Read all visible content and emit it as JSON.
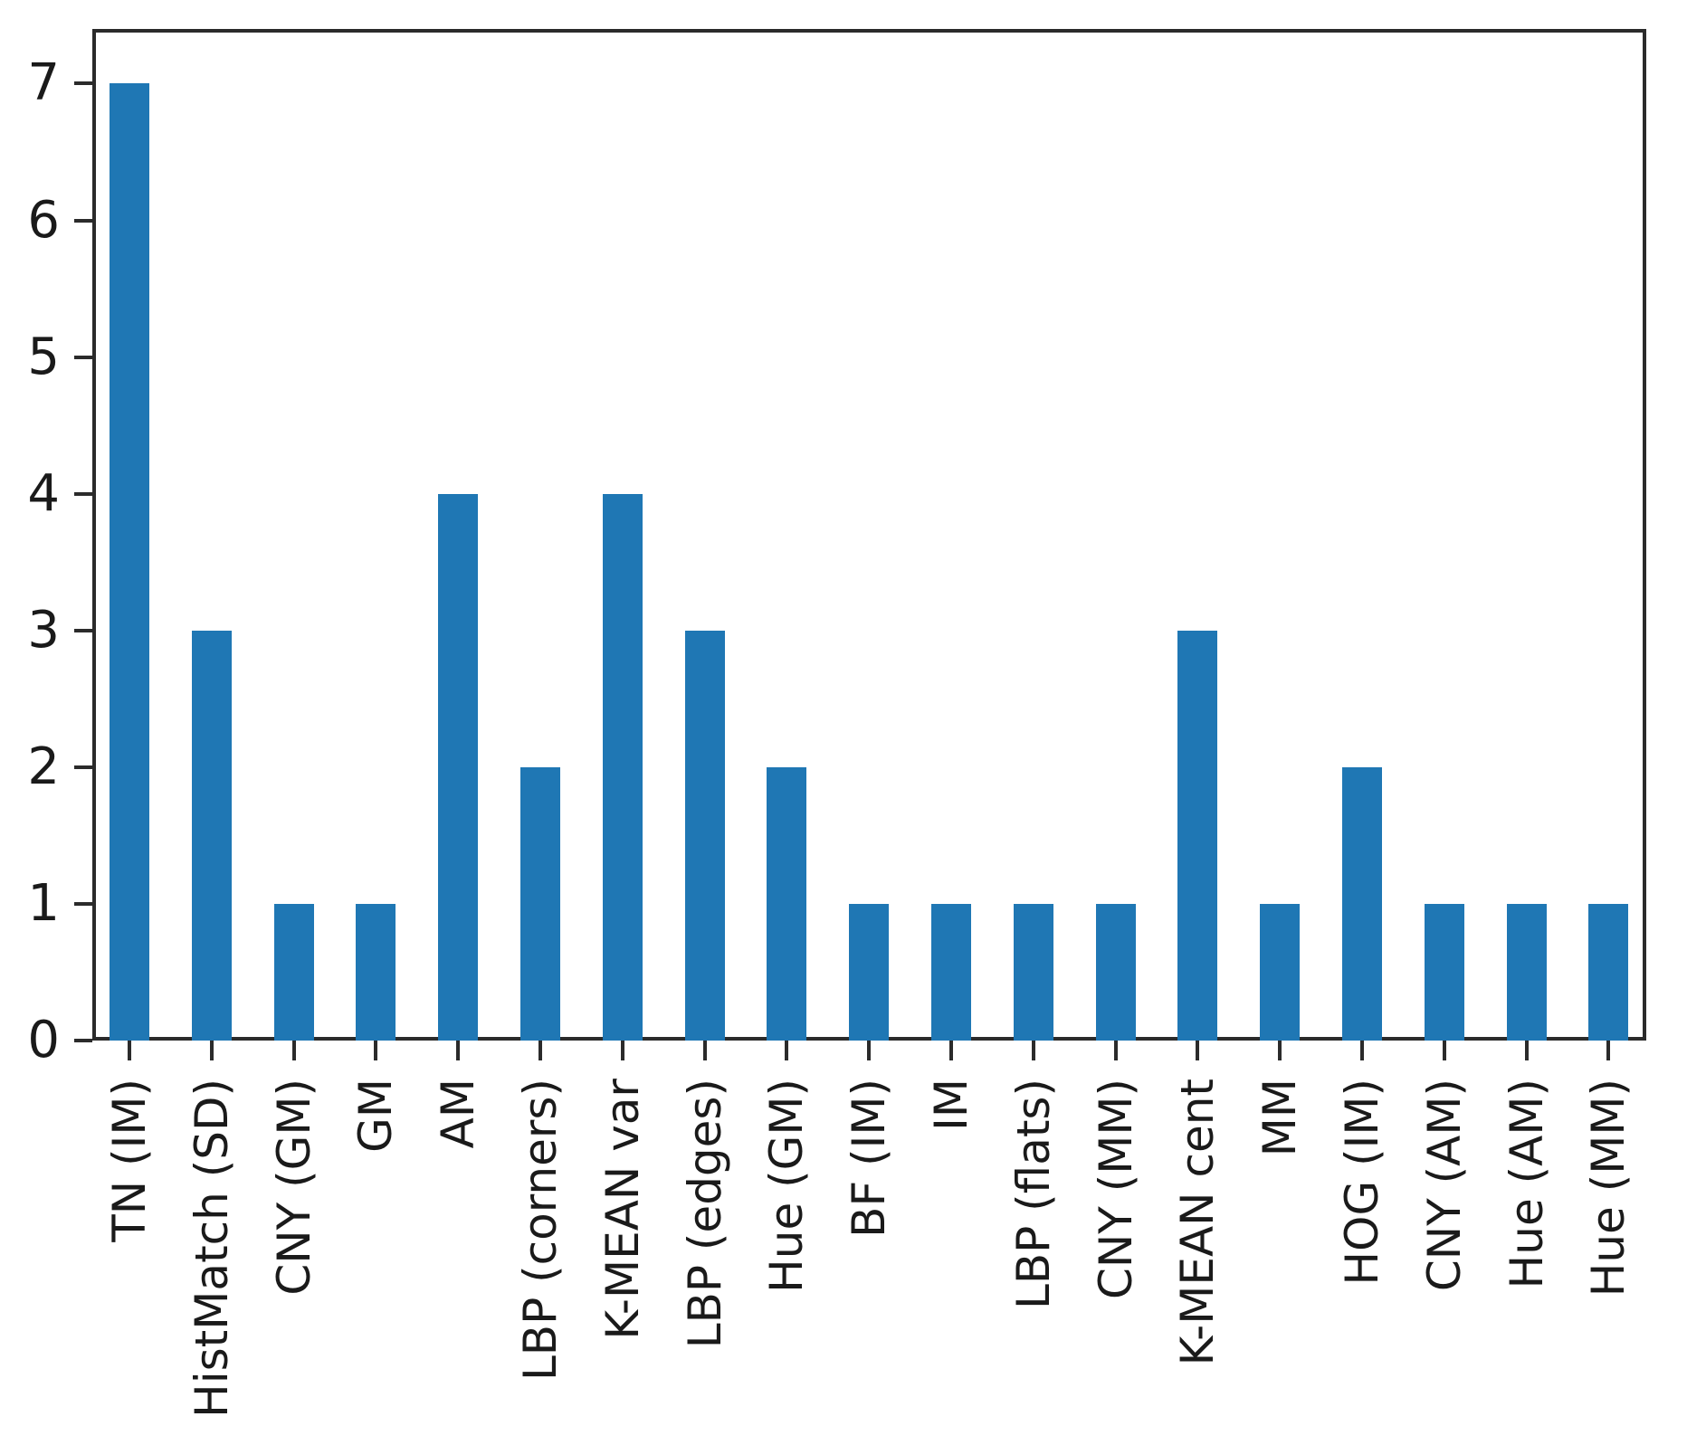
{
  "figure": {
    "background": "#ffffff"
  },
  "chart_data": {
    "type": "bar",
    "title": "",
    "xlabel": "",
    "ylabel": "",
    "categories": [
      "TN (IM)",
      "HistMatch (SD)",
      "CNY (GM)",
      "GM",
      "AM",
      "LBP (corners)",
      "K-MEAN var",
      "LBP (edges)",
      "Hue (GM)",
      "BF (IM)",
      "IM",
      "LBP (flats)",
      "CNY (MM)",
      "K-MEAN cent",
      "MM",
      "HOG (IM)",
      "CNY (AM)",
      "Hue (AM)",
      "Hue (MM)"
    ],
    "values": [
      7,
      3,
      1,
      1,
      4,
      2,
      4,
      3,
      2,
      1,
      1,
      1,
      1,
      3,
      1,
      2,
      1,
      1,
      1
    ],
    "ylim": [
      0,
      7.4
    ],
    "yticks": [
      0,
      1,
      2,
      3,
      4,
      5,
      6,
      7
    ],
    "x_tick_rotation": 90,
    "grid": false,
    "legend": false,
    "bar_color": "#1f77b4",
    "axis_color": "#2b2b2b",
    "text_color": "#1a1a1a"
  }
}
